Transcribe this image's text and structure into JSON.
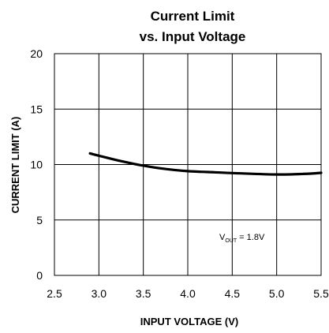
{
  "chart_data": {
    "type": "line",
    "title_line1": "Current Limit",
    "title_line2": "vs. Input Voltage",
    "xlabel": "INPUT VOLTAGE (V)",
    "ylabel": "CURRENT LIMIT (A)",
    "xlim": [
      2.5,
      5.5
    ],
    "ylim": [
      0,
      20
    ],
    "xticks": [
      "2.5",
      "3.0",
      "3.5",
      "4.0",
      "4.5",
      "5.0",
      "5.5"
    ],
    "yticks": [
      "0",
      "5",
      "10",
      "15",
      "20"
    ],
    "grid": true,
    "series": [
      {
        "x": [
          2.9,
          3.0,
          3.2,
          3.4,
          3.5,
          3.7,
          4.0,
          4.3,
          4.6,
          5.0,
          5.3,
          5.5
        ],
        "y": [
          11.0,
          10.8,
          10.4,
          10.05,
          9.9,
          9.65,
          9.4,
          9.3,
          9.2,
          9.1,
          9.15,
          9.25
        ]
      }
    ],
    "annotation": {
      "main": "V",
      "sub": "OUT",
      "rest": " = 1.8V"
    }
  }
}
